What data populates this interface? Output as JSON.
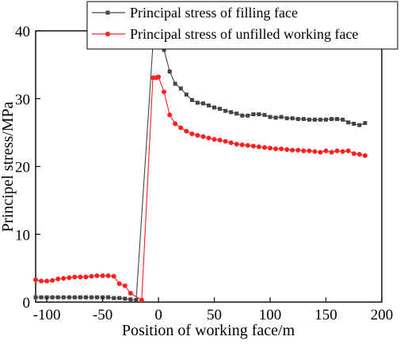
{
  "chart_data": {
    "type": "line",
    "xlabel": "Position of working face/m",
    "ylabel": "Principel stress/MPa",
    "xlim": [
      -110,
      200
    ],
    "ylim": [
      0,
      40
    ],
    "xticks": [
      -100,
      -50,
      0,
      50,
      100,
      150,
      200
    ],
    "yticks": [
      0,
      10,
      20,
      30,
      40
    ],
    "grid": false,
    "legend_position": "top-right",
    "series": [
      {
        "name": "Principal stress of filling face",
        "color": "#444444",
        "marker": "square",
        "x": [
          -110,
          -105,
          -100,
          -95,
          -90,
          -85,
          -80,
          -75,
          -70,
          -65,
          -60,
          -55,
          -50,
          -45,
          -40,
          -35,
          -30,
          -25,
          -20,
          -5,
          -2,
          0,
          5,
          10,
          15,
          20,
          25,
          30,
          35,
          40,
          45,
          50,
          55,
          60,
          65,
          70,
          75,
          80,
          85,
          90,
          95,
          100,
          105,
          110,
          115,
          120,
          125,
          130,
          135,
          140,
          145,
          150,
          155,
          160,
          165,
          170,
          175,
          180,
          185
        ],
        "y": [
          0.7,
          0.7,
          0.7,
          0.7,
          0.7,
          0.7,
          0.7,
          0.7,
          0.7,
          0.7,
          0.7,
          0.7,
          0.7,
          0.7,
          0.6,
          0.6,
          0.5,
          0.4,
          0.3,
          37.8,
          38.3,
          38.5,
          37.2,
          34.0,
          32.2,
          31.5,
          30.6,
          29.8,
          29.4,
          29.3,
          29.0,
          28.7,
          28.5,
          28.2,
          28.0,
          27.8,
          27.5,
          27.5,
          27.7,
          27.7,
          27.6,
          27.3,
          27.2,
          27.3,
          27.1,
          27.1,
          27.0,
          27.0,
          26.9,
          26.9,
          26.9,
          26.9,
          27.0,
          27.0,
          26.9,
          26.5,
          26.3,
          26.1,
          26.4
        ]
      },
      {
        "name": "Principal stress of unfilled working face",
        "color": "#ff2020",
        "marker": "circle",
        "x": [
          -110,
          -105,
          -100,
          -95,
          -90,
          -85,
          -80,
          -75,
          -70,
          -65,
          -60,
          -55,
          -50,
          -45,
          -40,
          -35,
          -30,
          -25,
          -15,
          -5,
          -2,
          0,
          5,
          10,
          15,
          20,
          25,
          30,
          35,
          40,
          45,
          50,
          55,
          60,
          65,
          70,
          75,
          80,
          85,
          90,
          95,
          100,
          105,
          110,
          115,
          120,
          125,
          130,
          135,
          140,
          145,
          150,
          155,
          160,
          165,
          170,
          175,
          180,
          185
        ],
        "y": [
          3.3,
          3.1,
          3.1,
          3.2,
          3.4,
          3.5,
          3.6,
          3.7,
          3.7,
          3.7,
          3.8,
          3.9,
          3.9,
          3.9,
          3.8,
          2.7,
          2.4,
          1.3,
          0.3,
          33.1,
          33.1,
          33.2,
          31.0,
          27.6,
          26.3,
          25.7,
          25.2,
          24.8,
          24.6,
          24.4,
          24.2,
          24.0,
          23.9,
          23.7,
          23.5,
          23.3,
          23.2,
          23.1,
          23.0,
          22.9,
          22.8,
          22.7,
          22.6,
          22.6,
          22.5,
          22.4,
          22.4,
          22.3,
          22.3,
          22.2,
          22.1,
          22.3,
          22.1,
          22.3,
          22.2,
          22.3,
          21.9,
          21.8,
          21.6
        ]
      }
    ]
  }
}
